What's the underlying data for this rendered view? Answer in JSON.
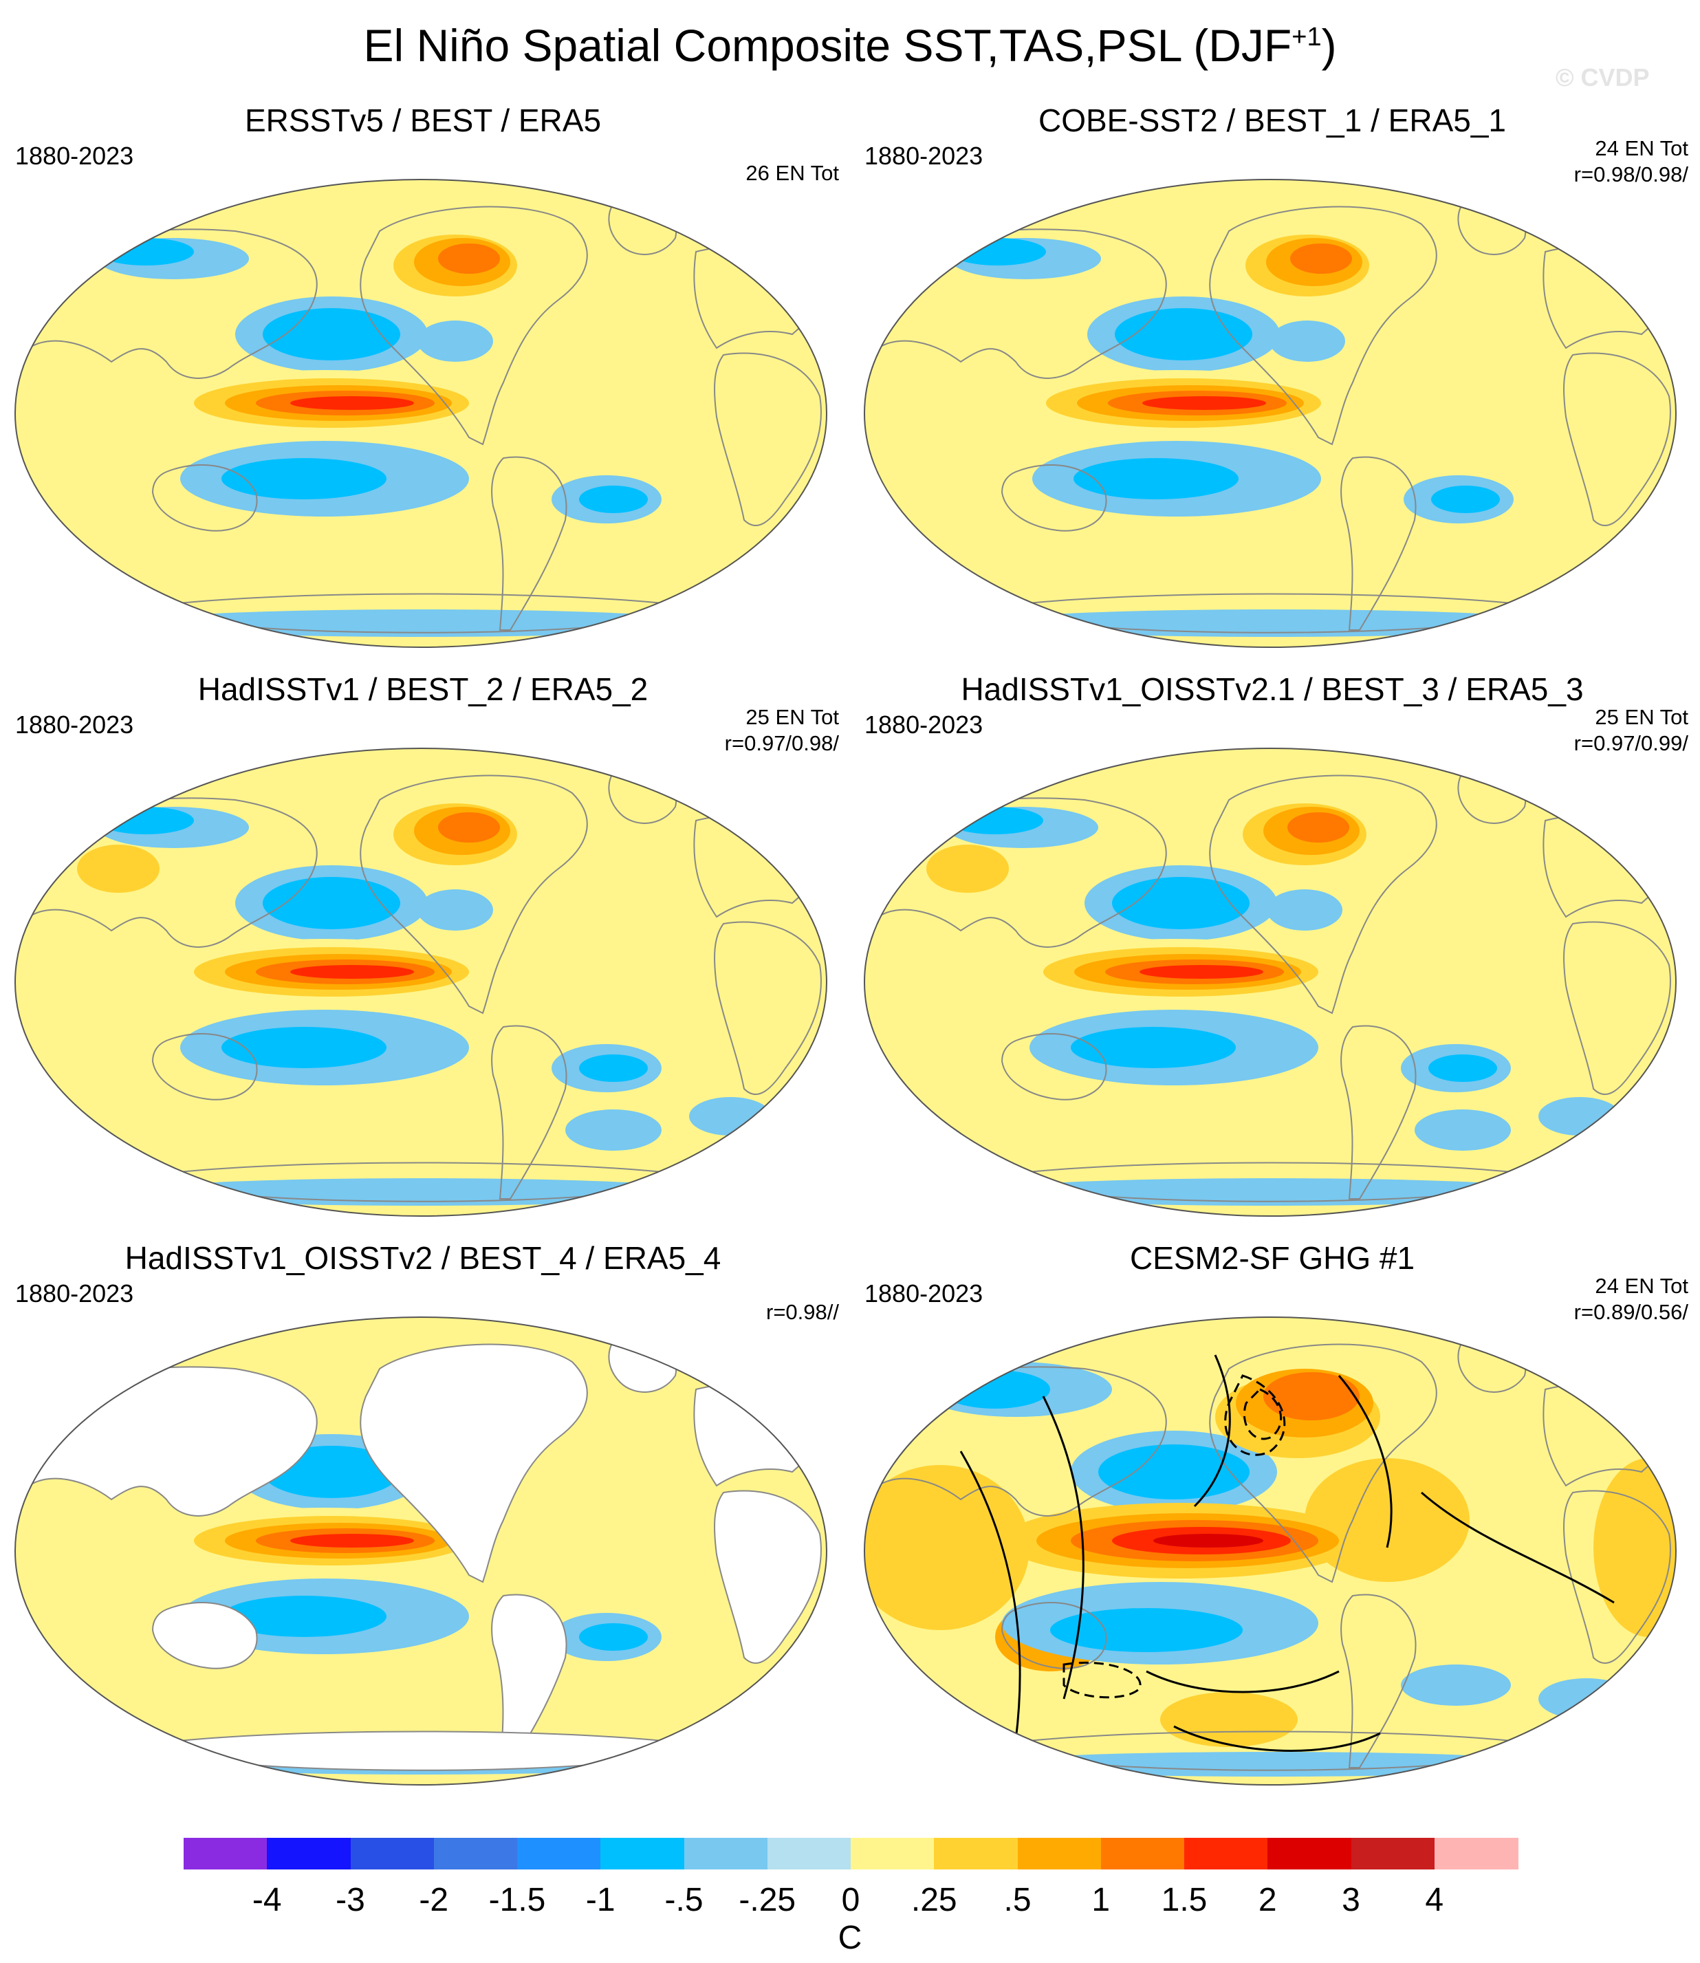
{
  "figure": {
    "title": "El Niño Spatial Composite SST,TAS,PSL (DJF",
    "title_superscript": "+1",
    "title_close": ")",
    "watermark": "© CVDP"
  },
  "panels": [
    {
      "title": "ERSSTv5 / BEST / ERA5",
      "period": "1880-2023",
      "ntot": "26 EN Tot",
      "stat": "",
      "land_masked": false,
      "psl_contours": false,
      "pattern": "a"
    },
    {
      "title": "COBE-SST2 / BEST_1 / ERA5_1",
      "period": "1880-2023",
      "ntot": "24 EN Tot",
      "stat": "r=0.98/0.98/",
      "land_masked": false,
      "psl_contours": false,
      "pattern": "b"
    },
    {
      "title": "HadISSTv1 / BEST_2 / ERA5_2",
      "period": "1880-2023",
      "ntot": "25 EN Tot",
      "stat": "r=0.97/0.98/",
      "land_masked": false,
      "psl_contours": false,
      "pattern": "c"
    },
    {
      "title": "HadISSTv1_OISSTv2.1 / BEST_3 / ERA5_3",
      "period": "1880-2023",
      "ntot": "25 EN Tot",
      "stat": "r=0.97/0.99/",
      "land_masked": false,
      "psl_contours": false,
      "pattern": "c"
    },
    {
      "title": "HadISSTv1_OISSTv2 / BEST_4 / ERA5_4",
      "period": "1880-2023",
      "ntot": "",
      "stat": "r=0.98//",
      "land_masked": true,
      "psl_contours": false,
      "pattern": "d"
    },
    {
      "title": "CESM2-SF GHG #1",
      "period": "1880-2023",
      "ntot": "24 EN Tot",
      "stat": "r=0.89/0.56/",
      "land_masked": false,
      "psl_contours": true,
      "pattern": "e"
    }
  ],
  "colorbar": {
    "units": "C",
    "tick_labels": [
      "-4",
      "-3",
      "-2",
      "-1.5",
      "-1",
      "-.5",
      "-.25",
      "0",
      ".25",
      ".5",
      "1",
      "1.5",
      "2",
      "3",
      "4"
    ],
    "colors": [
      "#8a2be2",
      "#1414ff",
      "#2850e6",
      "#3c78e6",
      "#1e90ff",
      "#00bfff",
      "#78c8f0",
      "#b4e0f0",
      "#fff58c",
      "#ffd232",
      "#ffaa00",
      "#ff7800",
      "#ff2800",
      "#dc0000",
      "#c81e1e",
      "#ffb4b4"
    ]
  },
  "map_colors": {
    "ocean_background": "#fff58c",
    "masked_land": "#ffffff",
    "coastline": "#888888",
    "psl_contour": "#000000"
  }
}
